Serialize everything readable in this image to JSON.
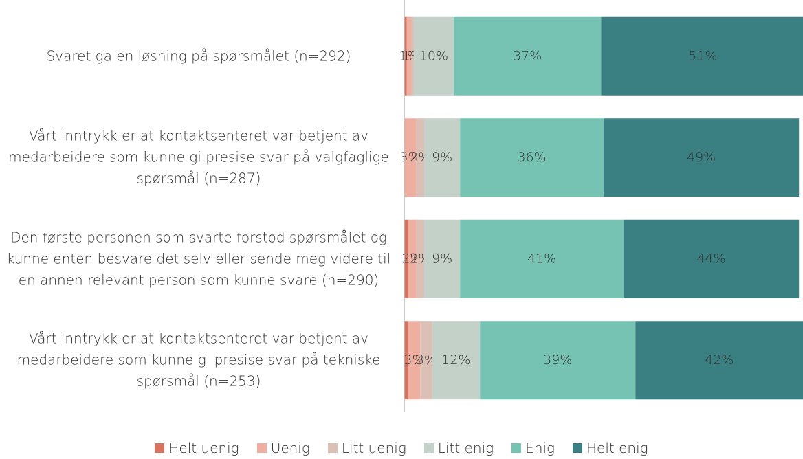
{
  "chart_data": {
    "type": "stacked-barh",
    "categories": [
      "Svaret ga en løsning på spørsmålet (n=292)",
      "Vårt inntrykk er at kontaktsenteret var betjent av medarbeidere som kunne gi presise svar på valgfaglige spørsmål (n=287)",
      "Den første personen som svarte forstod spørsmålet og kunne enten besvare det selv eller sende meg videre til en annen relevant person som kunne svare (n=290)",
      "Vårt inntrykk er at kontaktsenteret var betjent av medarbeidere som kunne gi presise svar på tekniske spørsmål (n=253)"
    ],
    "series": [
      {
        "name": "Helt uenig",
        "color": "#d9735f",
        "values": [
          0.6,
          0,
          1,
          1
        ],
        "value_labels": [
          null,
          null,
          null,
          null
        ]
      },
      {
        "name": "Uenig",
        "color": "#eeaea0",
        "values": [
          1.2,
          3,
          2,
          3
        ],
        "value_labels": [
          "1%",
          "3%",
          "2%",
          "3%"
        ]
      },
      {
        "name": "Litt uenig",
        "color": "#dcbfb5",
        "values": [
          0.6,
          2,
          2,
          3
        ],
        "value_labels": [
          "1%",
          "2%",
          "2%",
          "3%"
        ]
      },
      {
        "name": "Litt enig",
        "color": "#c4d1c9",
        "values": [
          10,
          9,
          9,
          12
        ],
        "value_labels": [
          "10%",
          "9%",
          "9%",
          "12%"
        ]
      },
      {
        "name": "Enig",
        "color": "#76c3b4",
        "values": [
          37,
          36,
          41,
          39
        ],
        "value_labels": [
          "37%",
          "36%",
          "41%",
          "39%"
        ]
      },
      {
        "name": "Helt enig",
        "color": "#3a7f82",
        "values": [
          51,
          49,
          44,
          42
        ],
        "value_labels": [
          "51%",
          "49%",
          "44%",
          "42%"
        ]
      }
    ],
    "xlim": [
      0,
      100
    ],
    "legend": "bottom"
  }
}
